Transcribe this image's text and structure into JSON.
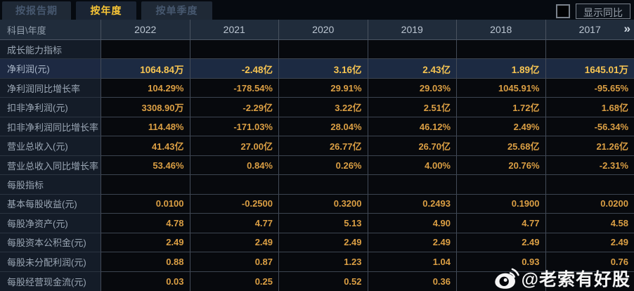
{
  "tabs": [
    {
      "label": "按报告期",
      "active": false
    },
    {
      "label": "按年度",
      "active": true
    },
    {
      "label": "按单季度",
      "active": false
    }
  ],
  "controls": {
    "show_yoy_checkbox_checked": false,
    "show_yoy_label": "显示同比"
  },
  "table": {
    "corner_header": "科目\\年度",
    "year_headers": [
      "2022",
      "2021",
      "2020",
      "2019",
      "2018",
      "2017"
    ],
    "more_icon": "»",
    "rows": [
      {
        "type": "section",
        "label": "成长能力指标"
      },
      {
        "type": "data",
        "highlight": true,
        "label": "净利润(元)",
        "values": [
          "1064.84万",
          "-2.48亿",
          "3.16亿",
          "2.43亿",
          "1.89亿",
          "1645.01万"
        ]
      },
      {
        "type": "data",
        "highlight": false,
        "label": "净利润同比增长率",
        "values": [
          "104.29%",
          "-178.54%",
          "29.91%",
          "29.03%",
          "1045.91%",
          "-95.65%"
        ]
      },
      {
        "type": "data",
        "highlight": false,
        "label": "扣非净利润(元)",
        "values": [
          "3308.90万",
          "-2.29亿",
          "3.22亿",
          "2.51亿",
          "1.72亿",
          "1.68亿"
        ]
      },
      {
        "type": "data",
        "highlight": false,
        "label": "扣非净利润同比增长率",
        "values": [
          "114.48%",
          "-171.03%",
          "28.04%",
          "46.12%",
          "2.49%",
          "-56.34%"
        ]
      },
      {
        "type": "data",
        "highlight": false,
        "label": "营业总收入(元)",
        "values": [
          "41.43亿",
          "27.00亿",
          "26.77亿",
          "26.70亿",
          "25.68亿",
          "21.26亿"
        ]
      },
      {
        "type": "data",
        "highlight": false,
        "label": "营业总收入同比增长率",
        "values": [
          "53.46%",
          "0.84%",
          "0.26%",
          "4.00%",
          "20.76%",
          "-2.31%"
        ]
      },
      {
        "type": "section",
        "label": "每股指标"
      },
      {
        "type": "data",
        "highlight": false,
        "label": "基本每股收益(元)",
        "values": [
          "0.0100",
          "-0.2500",
          "0.3200",
          "0.2493",
          "0.1900",
          "0.0200"
        ]
      },
      {
        "type": "data",
        "highlight": false,
        "label": "每股净资产(元)",
        "values": [
          "4.78",
          "4.77",
          "5.13",
          "4.90",
          "4.77",
          "4.58"
        ]
      },
      {
        "type": "data",
        "highlight": false,
        "label": "每股资本公积金(元)",
        "values": [
          "2.49",
          "2.49",
          "2.49",
          "2.49",
          "2.49",
          "2.49"
        ]
      },
      {
        "type": "data",
        "highlight": false,
        "label": "每股未分配利润(元)",
        "values": [
          "0.88",
          "0.87",
          "1.23",
          "1.04",
          "0.93",
          "0.76"
        ]
      },
      {
        "type": "data",
        "highlight": false,
        "label": "每股经营现金流(元)",
        "values": [
          "0.03",
          "0.25",
          "0.52",
          "0.36",
          "",
          ""
        ]
      }
    ]
  },
  "watermark": {
    "icon": "weibo-icon",
    "handle": "@老索有好股"
  },
  "colors": {
    "active_tab_text": "#f9c636",
    "value_text": "#db9f44",
    "highlight_value_text": "#f6c452",
    "header_bg": "#202c3b",
    "label_col_bg": "#141c28",
    "highlight_row_bg": "#1c2a42",
    "grid_line": "#434b58"
  }
}
